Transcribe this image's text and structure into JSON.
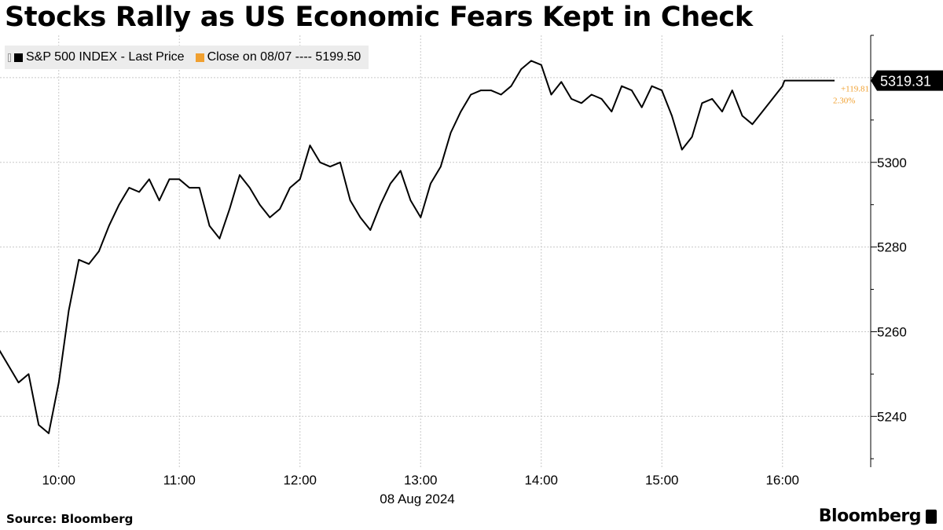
{
  "title": "Stocks Rally as US Economic Fears Kept in Check",
  "legend": {
    "series_label": "S&P 500 INDEX - Last Price",
    "reference_label": "Close on 08/07 ---- 5199.50"
  },
  "source": "Source:  Bloomberg",
  "logo": "Bloomberg",
  "colors": {
    "line": "#000000",
    "reference": "#f0a030",
    "grid": "#c8c8c8",
    "legend_bg": "#ececec"
  },
  "chart_data": {
    "type": "line",
    "series": [
      {
        "name": "S&P 500 INDEX - Last Price",
        "x": [
          "09:30",
          "09:35",
          "09:40",
          "09:45",
          "09:50",
          "09:55",
          "10:00",
          "10:05",
          "10:10",
          "10:15",
          "10:20",
          "10:25",
          "10:30",
          "10:35",
          "10:40",
          "10:45",
          "10:50",
          "10:55",
          "11:00",
          "11:05",
          "11:10",
          "11:15",
          "11:20",
          "11:25",
          "11:30",
          "11:35",
          "11:40",
          "11:45",
          "11:50",
          "11:55",
          "12:00",
          "12:05",
          "12:10",
          "12:15",
          "12:20",
          "12:25",
          "12:30",
          "12:35",
          "12:40",
          "12:45",
          "12:50",
          "12:55",
          "13:00",
          "13:05",
          "13:10",
          "13:15",
          "13:20",
          "13:25",
          "13:30",
          "13:35",
          "13:40",
          "13:45",
          "13:50",
          "13:55",
          "14:00",
          "14:05",
          "14:10",
          "14:15",
          "14:20",
          "14:25",
          "14:30",
          "14:35",
          "14:40",
          "14:45",
          "14:50",
          "14:55",
          "15:00",
          "15:05",
          "15:10",
          "15:15",
          "15:20",
          "15:25",
          "15:30",
          "15:35",
          "15:40",
          "15:45",
          "15:50",
          "15:55",
          "16:00",
          "16:01"
        ],
        "values": [
          5256,
          5252,
          5248,
          5250,
          5238,
          5236,
          5248,
          5265,
          5277,
          5276,
          5279,
          5285,
          5290,
          5294,
          5293,
          5296,
          5291,
          5296,
          5296,
          5294,
          5294,
          5285,
          5282,
          5289,
          5297,
          5294,
          5290,
          5287,
          5289,
          5294,
          5296,
          5304,
          5300,
          5299,
          5300,
          5291,
          5287,
          5284,
          5290,
          5295,
          5298,
          5291,
          5287,
          5295,
          5299,
          5307,
          5312,
          5316,
          5317,
          5317,
          5316,
          5318,
          5322,
          5324,
          5323,
          5316,
          5319,
          5315,
          5314,
          5316,
          5315,
          5312,
          5318,
          5317,
          5313,
          5318,
          5317,
          5311,
          5303,
          5306,
          5314,
          5315,
          5312,
          5317,
          5311,
          5309,
          5312,
          5315,
          5318,
          5319.31
        ]
      }
    ],
    "reference": {
      "label": "Close on 08/07",
      "value": 5199.5
    },
    "last_value": "5319.31",
    "change_abs": "+119.81",
    "change_pct": "2.30%",
    "x_ticks": [
      "10:00",
      "11:00",
      "12:00",
      "13:00",
      "14:00",
      "15:00",
      "16:00"
    ],
    "x_sublabel": "08 Aug 2024",
    "y_ticks": [
      5240,
      5260,
      5280,
      5300
    ],
    "ylim": [
      5228,
      5330
    ],
    "grid": true,
    "legend_position": "top-left"
  }
}
